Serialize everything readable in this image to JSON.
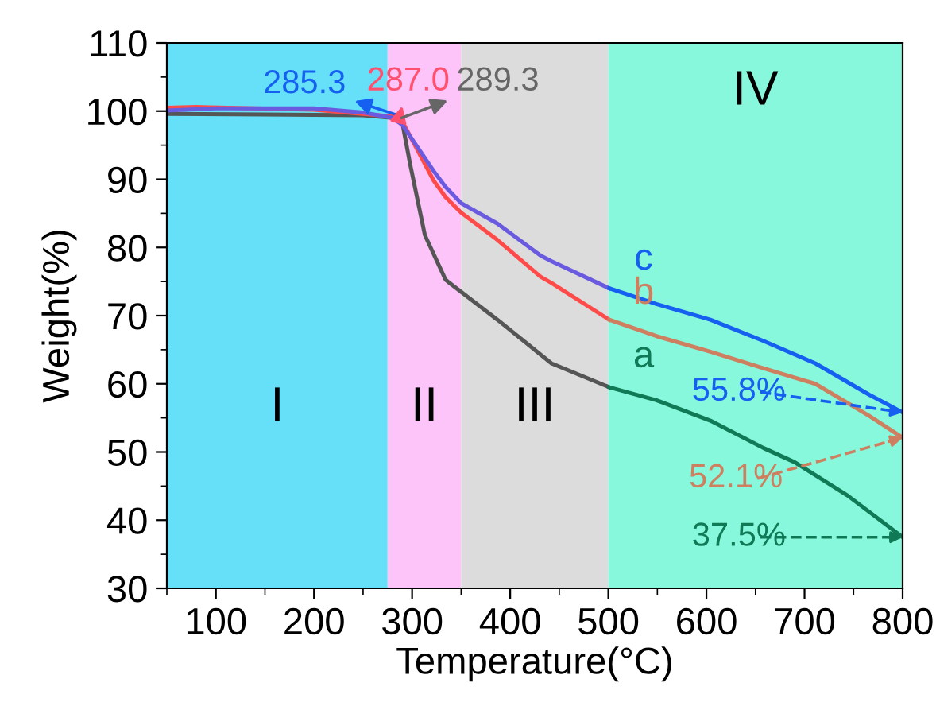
{
  "chart_data": {
    "type": "line",
    "xlabel": "Temperature(°C)",
    "ylabel": "Weight(%)",
    "xlim": [
      50,
      800
    ],
    "xticks": [
      100,
      200,
      300,
      400,
      500,
      600,
      700,
      800
    ],
    "ylim": [
      30,
      110
    ],
    "yticks": [
      30,
      40,
      50,
      60,
      70,
      80,
      90,
      100,
      110
    ],
    "grid": false,
    "legend": false,
    "bands": [
      {
        "axis": "x",
        "from": 50,
        "to": 275,
        "label": "I",
        "color": "#66e0f8"
      },
      {
        "axis": "x",
        "from": 275,
        "to": 350,
        "label": "II",
        "color": "#fcc4f8"
      },
      {
        "axis": "x",
        "from": 350,
        "to": 500,
        "label": "III",
        "color": "#dcdcdc"
      },
      {
        "axis": "x",
        "from": 500,
        "to": 800,
        "label": "IV",
        "color": "#88f8dc"
      }
    ],
    "series": [
      {
        "color": "#555555",
        "x": [
          50,
          150,
          250,
          280,
          290,
          298,
          313,
          334,
          338,
          387,
          442,
          501
        ],
        "values": [
          99.6,
          99.5,
          99.4,
          99.0,
          98.3,
          92.2,
          81.8,
          75.3,
          74.8,
          69.4,
          63,
          59.5
        ]
      },
      {
        "color": "#0f7a55",
        "x": [
          501,
          549,
          604,
          658,
          690,
          711,
          744,
          800
        ],
        "values": [
          59.5,
          57.6,
          54.6,
          50.6,
          48.5,
          46.6,
          43.6,
          37.5
        ]
      },
      {
        "color": "#ff4a4a",
        "x": [
          50,
          80,
          200,
          280,
          290,
          322,
          334,
          350,
          387,
          431,
          442,
          501
        ],
        "values": [
          100.5,
          100.6,
          100.2,
          99.2,
          98.5,
          89.8,
          87.4,
          85.1,
          81.1,
          75.7,
          74.8,
          69.4
        ]
      },
      {
        "color": "#cd7f60",
        "x": [
          501,
          549,
          604,
          658,
          711,
          766,
          800
        ],
        "values": [
          69.4,
          67,
          64.7,
          62.3,
          60,
          55.3,
          52.1
        ]
      },
      {
        "color": "#6a5ae0",
        "x": [
          50,
          100,
          200,
          250,
          280,
          290,
          322,
          334,
          350,
          387,
          431,
          442,
          501
        ],
        "values": [
          100.1,
          100.4,
          100.4,
          99.8,
          99.0,
          98,
          91.2,
          88.9,
          86.5,
          83.5,
          78.8,
          78,
          74
        ]
      },
      {
        "color": "#1560f0",
        "x": [
          501,
          549,
          604,
          658,
          711,
          766,
          800
        ],
        "values": [
          74,
          71.7,
          69.4,
          66.3,
          63,
          58.4,
          55.8
        ]
      }
    ],
    "annotations": [
      {
        "text": "285.3",
        "x": 285.3,
        "y": 99.4
      },
      {
        "text": "287.0",
        "x": 287.0,
        "y": 99.0
      },
      {
        "text": "289.3",
        "x": 289.3,
        "y": 99.0
      },
      {
        "text": "55.8%",
        "x": 800,
        "y": 55.8
      },
      {
        "text": "52.1%",
        "x": 800,
        "y": 52.1
      },
      {
        "text": "37.5%",
        "x": 800,
        "y": 37.5
      },
      {
        "text": "a",
        "x": 536,
        "y": 58.3
      },
      {
        "text": "b",
        "x": 536,
        "y": 67.6
      },
      {
        "text": "c",
        "x": 536,
        "y": 72.6
      }
    ]
  }
}
